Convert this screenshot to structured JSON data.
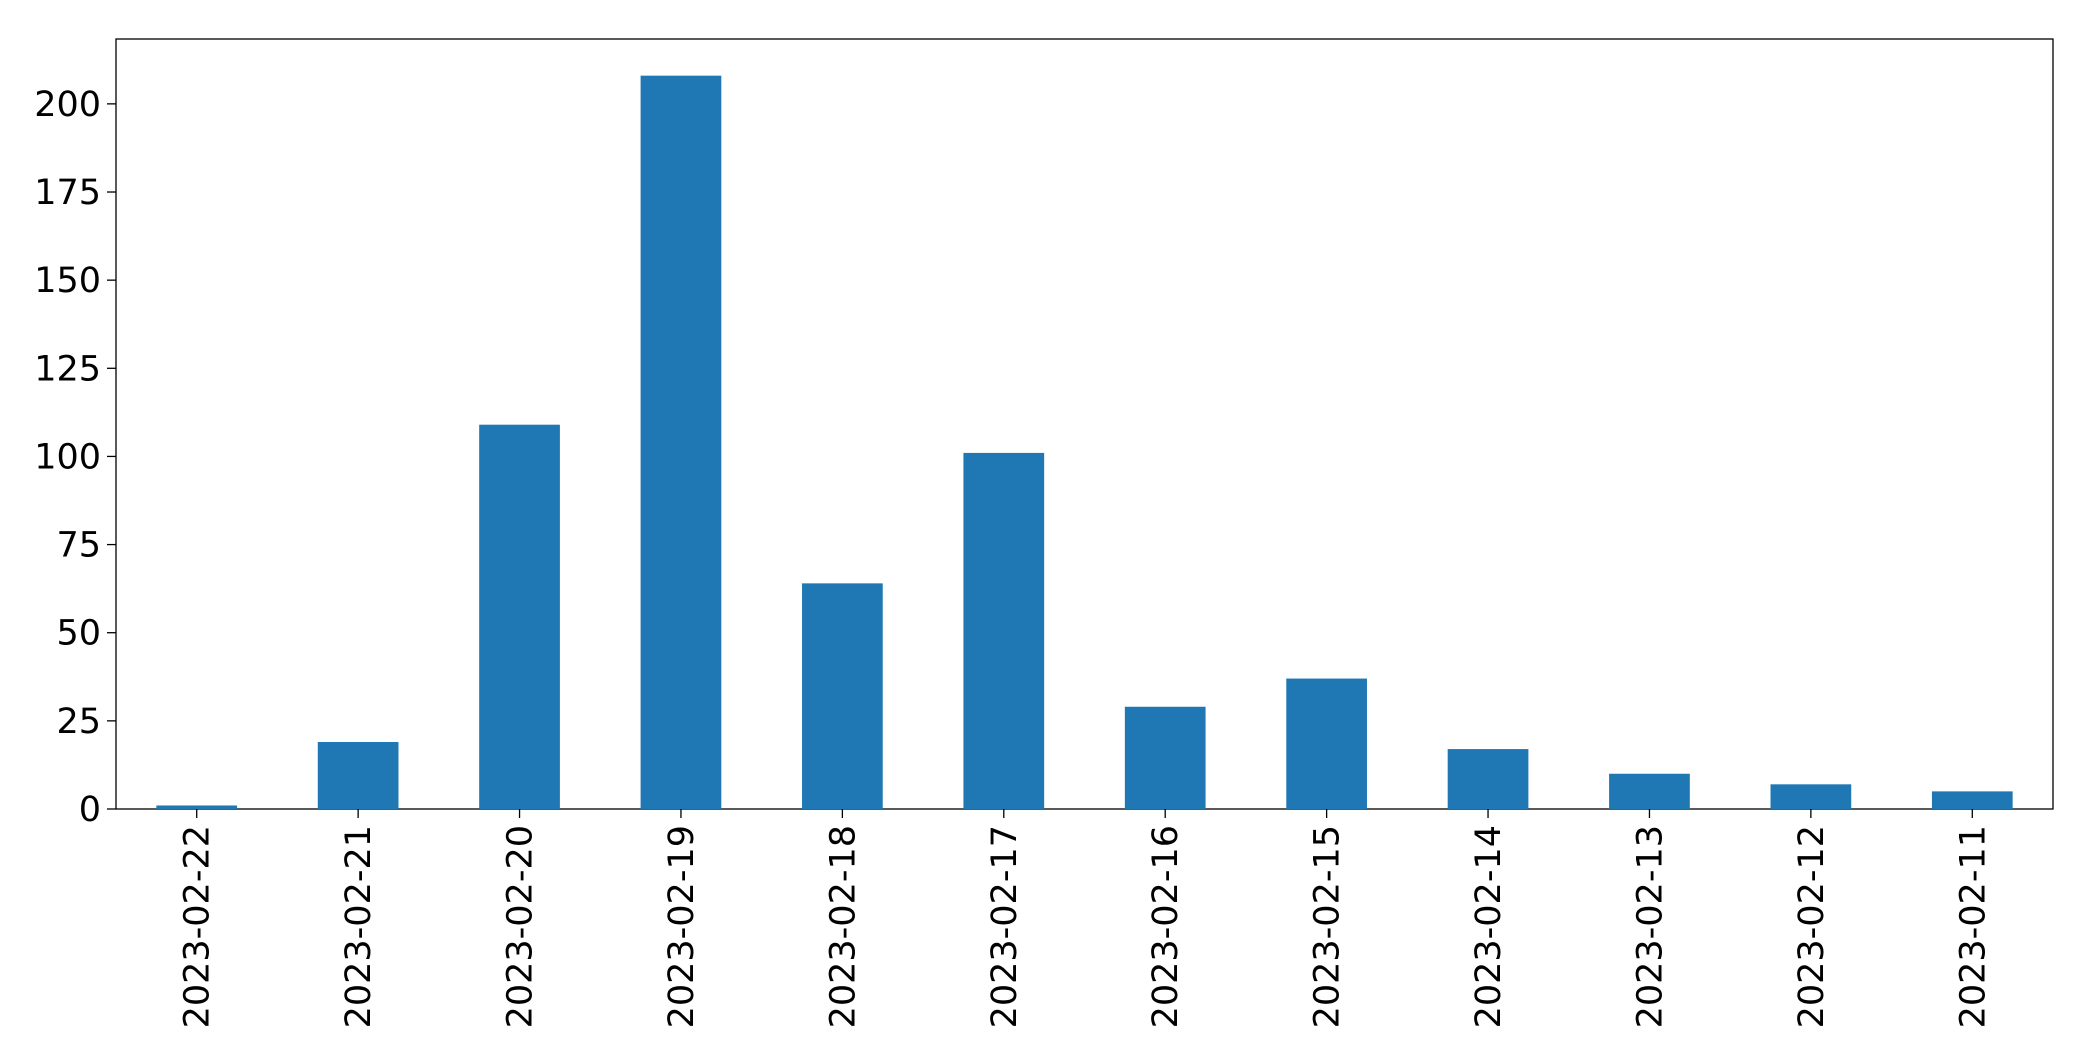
{
  "chart_data": {
    "type": "bar",
    "categories": [
      "2023-02-22",
      "2023-02-21",
      "2023-02-20",
      "2023-02-19",
      "2023-02-18",
      "2023-02-17",
      "2023-02-16",
      "2023-02-15",
      "2023-02-14",
      "2023-02-13",
      "2023-02-12",
      "2023-02-11"
    ],
    "values": [
      1,
      19,
      109,
      208,
      64,
      101,
      29,
      37,
      17,
      10,
      7,
      5
    ],
    "color": "#1f77b4",
    "ylim": [
      0,
      218.4
    ],
    "yticks": [
      0,
      25,
      50,
      75,
      100,
      125,
      150,
      175,
      200
    ],
    "grid": false
  }
}
